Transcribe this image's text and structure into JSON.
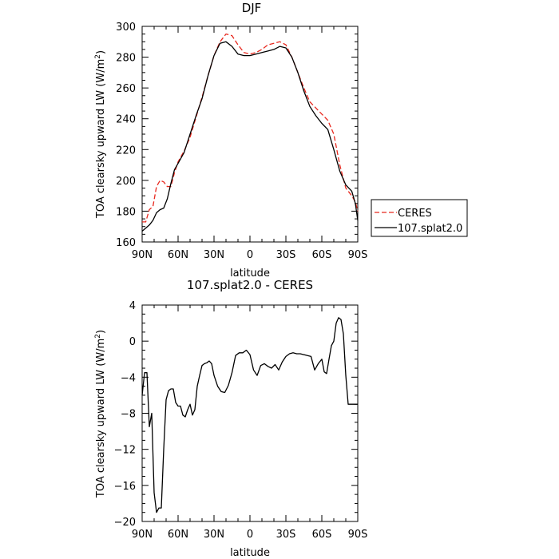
{
  "chart_data": [
    {
      "type": "line",
      "title": "DJF",
      "xlabel": "latitude",
      "ylabel_main": "TOA clearsky upward LW (W/m",
      "ylabel_sup": "2",
      "ylabel_tail": ")",
      "xlim": [
        90,
        -90
      ],
      "ylim": [
        160,
        300
      ],
      "x_ticks": [
        90,
        60,
        30,
        0,
        -30,
        -60,
        -90
      ],
      "x_tick_labels": [
        "90N",
        "60N",
        "30N",
        "0",
        "30S",
        "60S",
        "90S"
      ],
      "y_ticks": [
        160,
        180,
        200,
        220,
        240,
        260,
        280,
        300
      ],
      "y_tick_labels": [
        "160",
        "180",
        "200",
        "220",
        "240",
        "260",
        "280",
        "300"
      ],
      "legend_position": "outside-right",
      "series": [
        {
          "name": "CERES",
          "color": "#e8281e",
          "dash": "dashed",
          "x": [
            90,
            87,
            84,
            81,
            78,
            75,
            72,
            69,
            66,
            63,
            60,
            55,
            50,
            45,
            40,
            35,
            30,
            25,
            20,
            15,
            10,
            5,
            0,
            -5,
            -10,
            -15,
            -20,
            -25,
            -30,
            -35,
            -40,
            -45,
            -50,
            -55,
            -60,
            -65,
            -70,
            -75,
            -80,
            -85,
            -88,
            -90
          ],
          "y": [
            173,
            173,
            181,
            183,
            196,
            200,
            199,
            196,
            196,
            205,
            212,
            219,
            228,
            241,
            254,
            268,
            281,
            290,
            295,
            294,
            288,
            283,
            282,
            283,
            285,
            288,
            289,
            290,
            288,
            280,
            270,
            260,
            251,
            247,
            243,
            239,
            230,
            210,
            195,
            190,
            186,
            180
          ]
        },
        {
          "name": "107.splat2.0",
          "color": "#000000",
          "dash": "solid",
          "x": [
            90,
            87,
            84,
            81,
            78,
            75,
            72,
            69,
            66,
            63,
            60,
            55,
            50,
            45,
            40,
            35,
            30,
            25,
            20,
            15,
            10,
            5,
            0,
            -5,
            -10,
            -15,
            -20,
            -25,
            -30,
            -35,
            -40,
            -45,
            -50,
            -55,
            -60,
            -65,
            -70,
            -75,
            -80,
            -85,
            -88,
            -90
          ],
          "y": [
            167,
            169,
            171,
            174,
            179,
            181,
            182,
            188,
            198,
            207,
            211,
            218,
            230,
            242,
            253,
            268,
            281,
            289,
            290,
            287,
            282,
            281,
            281,
            282,
            283,
            284,
            285,
            287,
            286,
            280,
            270,
            258,
            248,
            242,
            237,
            233,
            220,
            206,
            197,
            193,
            185,
            174
          ]
        }
      ]
    },
    {
      "type": "line",
      "title": "107.splat2.0 - CERES",
      "xlabel": "latitude",
      "ylabel_main": "TOA clearsky upward LW (W/m",
      "ylabel_sup": "2",
      "ylabel_tail": ")",
      "xlim": [
        90,
        -90
      ],
      "ylim": [
        -20,
        4
      ],
      "x_ticks": [
        90,
        60,
        30,
        0,
        -30,
        -60,
        -90
      ],
      "x_tick_labels": [
        "90N",
        "60N",
        "30N",
        "0",
        "30S",
        "60S",
        "90S"
      ],
      "y_ticks": [
        -20,
        -16,
        -12,
        -8,
        -4,
        0,
        4
      ],
      "y_tick_labels": [
        "−20",
        "−16",
        "−12",
        "−8",
        "−4",
        "0",
        "4"
      ],
      "series": [
        {
          "color": "#000000",
          "dash": "solid",
          "x": [
            90,
            88,
            86,
            84,
            82,
            80,
            78,
            76,
            74,
            72,
            70,
            68,
            66,
            64,
            62,
            60,
            58,
            56,
            54,
            52,
            50,
            48,
            46,
            44,
            42,
            40,
            38,
            36,
            34,
            32,
            30,
            27,
            24,
            21,
            18,
            15,
            12,
            9,
            6,
            3,
            0,
            -3,
            -6,
            -9,
            -12,
            -15,
            -18,
            -21,
            -24,
            -27,
            -30,
            -33,
            -36,
            -39,
            -42,
            -45,
            -48,
            -51,
            -54,
            -57,
            -60,
            -62,
            -64,
            -66,
            -68,
            -70,
            -72,
            -74,
            -76,
            -78,
            -80,
            -82,
            -84,
            -86,
            -88,
            -90
          ],
          "y": [
            -6.0,
            -3.5,
            -3.5,
            -9.5,
            -8.0,
            -16.8,
            -19.0,
            -18.5,
            -18.5,
            -12.0,
            -6.5,
            -5.5,
            -5.3,
            -5.3,
            -6.8,
            -7.2,
            -7.2,
            -8.2,
            -8.4,
            -7.6,
            -7.0,
            -8.2,
            -7.6,
            -5.0,
            -3.8,
            -2.7,
            -2.5,
            -2.4,
            -2.2,
            -2.5,
            -3.8,
            -5.0,
            -5.6,
            -5.7,
            -4.9,
            -3.5,
            -1.6,
            -1.3,
            -1.3,
            -1.0,
            -1.5,
            -3.2,
            -3.8,
            -2.7,
            -2.5,
            -2.8,
            -3.0,
            -2.6,
            -3.2,
            -2.3,
            -1.7,
            -1.4,
            -1.3,
            -1.4,
            -1.4,
            -1.5,
            -1.6,
            -1.7,
            -3.2,
            -2.5,
            -2.0,
            -3.4,
            -3.6,
            -2.0,
            -0.5,
            0.0,
            2.0,
            2.6,
            2.4,
            0.8,
            -3.8,
            -7.0,
            -7.0,
            -7.0,
            -7.0,
            -7.0
          ]
        }
      ]
    }
  ]
}
